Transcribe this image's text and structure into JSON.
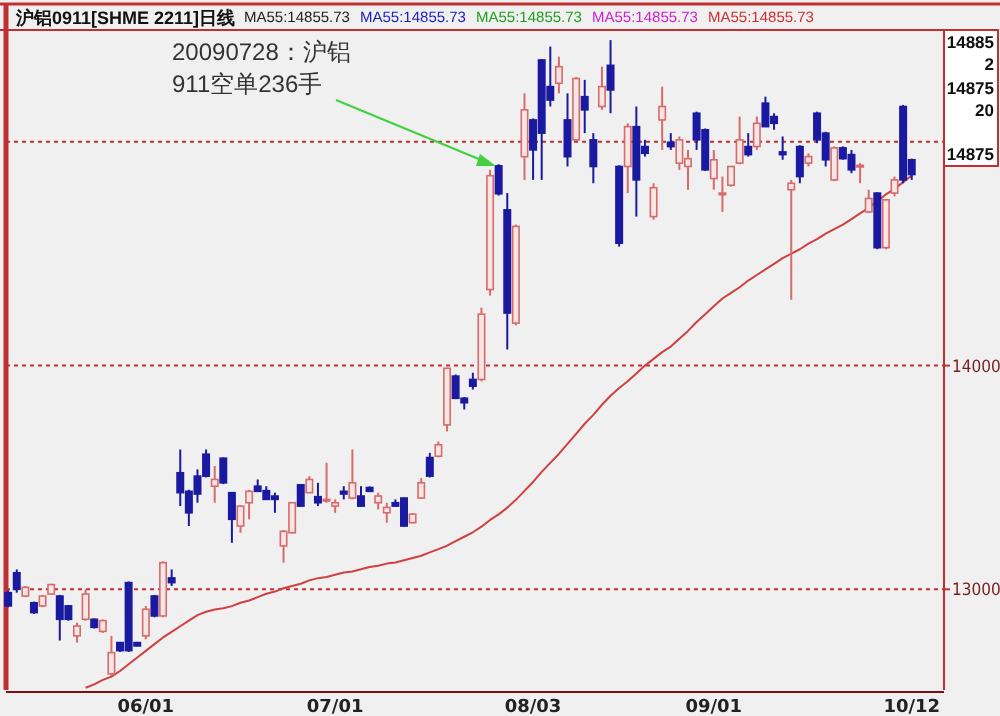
{
  "chart_data": {
    "type": "candlestick",
    "title": "沪铝0911[SHME 2211]日线",
    "categories": [
      null,
      null,
      null,
      null,
      null,
      null,
      null,
      null,
      null,
      null,
      null,
      null,
      null,
      null,
      null,
      null,
      "06/01",
      null,
      null,
      null,
      null,
      null,
      null,
      null,
      null,
      null,
      null,
      null,
      null,
      null,
      null,
      null,
      null,
      null,
      null,
      null,
      null,
      null,
      "07/01",
      null,
      null,
      null,
      null,
      null,
      null,
      null,
      null,
      null,
      null,
      null,
      null,
      null,
      null,
      null,
      null,
      null,
      null,
      null,
      null,
      null,
      null,
      "08/03",
      null,
      null,
      null,
      null,
      null,
      null,
      null,
      null,
      null,
      null,
      null,
      null,
      null,
      null,
      null,
      null,
      null,
      null,
      null,
      null,
      "09/01",
      null,
      null,
      null,
      null,
      null,
      null,
      null,
      null,
      null,
      null,
      null,
      null,
      null,
      null,
      null,
      null,
      null,
      null,
      null,
      null,
      null,
      null,
      "10/12"
    ],
    "ohlc": [
      [
        12985,
        12995,
        12920,
        12926
      ],
      [
        13074,
        13089,
        12985,
        13000
      ],
      [
        12970,
        13015,
        12965,
        13009
      ],
      [
        12940,
        12945,
        12890,
        12896
      ],
      [
        12926,
        12975,
        12920,
        12970
      ],
      [
        12979,
        13025,
        12975,
        13021
      ],
      [
        12970,
        12975,
        12771,
        12866
      ],
      [
        12926,
        12930,
        12860,
        12866
      ],
      [
        12792,
        12851,
        12762,
        12836
      ],
      [
        12866,
        13000,
        12860,
        12979
      ],
      [
        12866,
        12870,
        12825,
        12830
      ],
      [
        12812,
        12865,
        12805,
        12860
      ],
      [
        12622,
        12792,
        12613,
        12717
      ],
      [
        12762,
        12765,
        12720,
        12726
      ],
      [
        13030,
        13035,
        12720,
        12726
      ],
      [
        12762,
        12765,
        12745,
        12747
      ],
      [
        12792,
        12926,
        12777,
        12911
      ],
      [
        12970,
        12975,
        12875,
        12881
      ],
      [
        12881,
        13125,
        12875,
        13119
      ],
      [
        13051,
        13089,
        13015,
        13030
      ],
      [
        13521,
        13625,
        13372,
        13432
      ],
      [
        13438,
        13445,
        13283,
        13342
      ],
      [
        13506,
        13536,
        13387,
        13426
      ],
      [
        13604,
        13625,
        13500,
        13506
      ],
      [
        13461,
        13551,
        13387,
        13491
      ],
      [
        13586,
        13590,
        13470,
        13476
      ],
      [
        13432,
        13435,
        13208,
        13313
      ],
      [
        13283,
        13375,
        13253,
        13372
      ],
      [
        13387,
        13445,
        13313,
        13438
      ],
      [
        13461,
        13491,
        13435,
        13438
      ],
      [
        13441,
        13461,
        13400,
        13402
      ],
      [
        13417,
        13432,
        13342,
        13402
      ],
      [
        13194,
        13265,
        13119,
        13259
      ],
      [
        13253,
        13390,
        13250,
        13387
      ],
      [
        13467,
        13470,
        13370,
        13372
      ],
      [
        13432,
        13506,
        13430,
        13491
      ],
      [
        13414,
        13476,
        13372,
        13387
      ],
      [
        13402,
        13566,
        13387,
        13402
      ],
      [
        13372,
        13402,
        13342,
        13387
      ],
      [
        13438,
        13461,
        13402,
        13426
      ],
      [
        13408,
        13625,
        13402,
        13476
      ],
      [
        13417,
        13461,
        13370,
        13372
      ],
      [
        13455,
        13460,
        13435,
        13438
      ],
      [
        13387,
        13432,
        13357,
        13417
      ],
      [
        13342,
        13387,
        13298,
        13366
      ],
      [
        13387,
        13402,
        13370,
        13372
      ],
      [
        13408,
        13410,
        13280,
        13283
      ],
      [
        13298,
        13340,
        13295,
        13336
      ],
      [
        13408,
        13497,
        13405,
        13476
      ],
      [
        13589,
        13610,
        13500,
        13506
      ],
      [
        13595,
        13661,
        13590,
        13646
      ],
      [
        13735,
        13990,
        13706,
        13988
      ],
      [
        13953,
        13960,
        13850,
        13854
      ],
      [
        13854,
        13860,
        13804,
        13834
      ],
      [
        13938,
        13968,
        13893,
        13908
      ],
      [
        13938,
        14259,
        13930,
        14230
      ],
      [
        14340,
        14875,
        14313,
        14849
      ],
      [
        14893,
        14900,
        14760,
        14768
      ],
      [
        14696,
        14771,
        14072,
        14235
      ],
      [
        14190,
        14630,
        14180,
        14622
      ],
      [
        14934,
        15217,
        14830,
        15143
      ],
      [
        15098,
        15105,
        14830,
        14964
      ],
      [
        15366,
        15370,
        14830,
        15039
      ],
      [
        15247,
        15426,
        15158,
        15187
      ],
      [
        15262,
        15381,
        15217,
        15336
      ],
      [
        15098,
        15217,
        14890,
        14934
      ],
      [
        15009,
        15290,
        15005,
        15283
      ],
      [
        15202,
        15277,
        15039,
        15143
      ],
      [
        15009,
        15039,
        14815,
        14890
      ],
      [
        15158,
        15336,
        15143,
        15247
      ],
      [
        15342,
        15455,
        15128,
        15232
      ],
      [
        14890,
        14895,
        14532,
        14547
      ],
      [
        14890,
        15083,
        14771,
        15068
      ],
      [
        15068,
        15158,
        14666,
        14830
      ],
      [
        14979,
        15009,
        14934,
        14949
      ],
      [
        14666,
        14815,
        14652,
        14795
      ],
      [
        15098,
        15247,
        14964,
        15158
      ],
      [
        14998,
        15039,
        14964,
        14979
      ],
      [
        14905,
        15024,
        14875,
        15009
      ],
      [
        14890,
        14964,
        14786,
        14925
      ],
      [
        15128,
        15135,
        14964,
        15009
      ],
      [
        15054,
        15060,
        14870,
        14875
      ],
      [
        14836,
        14964,
        14786,
        14920
      ],
      [
        14771,
        14845,
        14687,
        14771
      ],
      [
        14806,
        14890,
        14800,
        14890
      ],
      [
        14905,
        15113,
        14900,
        15009
      ],
      [
        14979,
        15039,
        14934,
        14943
      ],
      [
        14979,
        15113,
        14964,
        15083
      ],
      [
        15173,
        15202,
        15068,
        15068
      ],
      [
        15113,
        15128,
        15054,
        15083
      ],
      [
        14955,
        15024,
        14920,
        14943
      ],
      [
        14786,
        14830,
        14294,
        14815
      ],
      [
        14979,
        14985,
        14815,
        14845
      ],
      [
        14905,
        14949,
        14890,
        14934
      ],
      [
        15128,
        15135,
        14994,
        15009
      ],
      [
        15039,
        15045,
        14890,
        14920
      ],
      [
        14830,
        14980,
        14824,
        14973
      ],
      [
        14973,
        14980,
        14920,
        14925
      ],
      [
        14943,
        14964,
        14860,
        14875
      ],
      [
        14890,
        14905,
        14815,
        14895
      ],
      [
        14687,
        14786,
        14681,
        14747
      ],
      [
        14771,
        14775,
        14520,
        14527
      ],
      [
        14527,
        14745,
        14520,
        14741
      ],
      [
        14771,
        14845,
        14756,
        14830
      ],
      [
        15158,
        15165,
        14815,
        14830
      ],
      [
        14920,
        14925,
        14830,
        14854
      ]
    ],
    "series": [
      {
        "type": "line",
        "color": "#d04040",
        "values": [
          null,
          null,
          null,
          null,
          null,
          null,
          null,
          null,
          null,
          12560,
          12575,
          12595,
          12610,
          12635,
          12665,
          12695,
          12725,
          12755,
          12785,
          12810,
          12835,
          12860,
          12885,
          12900,
          12910,
          12915,
          12925,
          12940,
          12950,
          12965,
          12980,
          12990,
          13005,
          13015,
          13025,
          13040,
          13050,
          13055,
          13065,
          13075,
          13080,
          13090,
          13100,
          13105,
          13115,
          13120,
          13130,
          13140,
          13150,
          13165,
          13180,
          13195,
          13215,
          13235,
          13255,
          13280,
          13310,
          13335,
          13365,
          13400,
          13440,
          13480,
          13525,
          13565,
          13605,
          13650,
          13695,
          13740,
          13780,
          13825,
          13865,
          13900,
          13930,
          13965,
          14000,
          14030,
          14060,
          14085,
          14120,
          14155,
          14195,
          14230,
          14265,
          14300,
          14325,
          14350,
          14380,
          14405,
          14430,
          14455,
          14480,
          14500,
          14520,
          14545,
          14565,
          14590,
          14610,
          14630,
          14655,
          14680,
          14705,
          14735,
          14765,
          14790,
          14820,
          14850
        ]
      }
    ],
    "ylim": [
      12550,
      15500
    ],
    "yticks": [
      13000,
      14000,
      {
        "value": 15000,
        "label": null
      }
    ],
    "grid": "y",
    "annotations": [
      "MA55:14855.73",
      "MA55:14855.73",
      "MA55:14855.73",
      "MA55:14855.73",
      "MA55:14855.73",
      "20090728：沪铝911空单236手",
      "14885",
      "2",
      "14875",
      "20",
      "14875"
    ]
  }
}
